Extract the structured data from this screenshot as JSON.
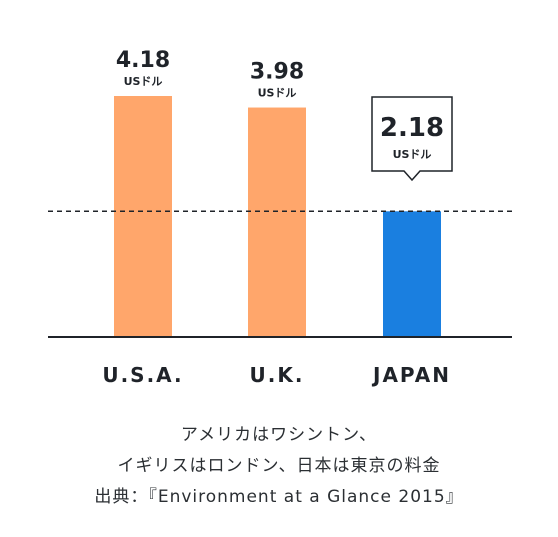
{
  "chart_data": {
    "type": "bar",
    "categories": [
      "U.S.A.",
      "U.K.",
      "JAPAN"
    ],
    "values": [
      4.18,
      3.98,
      2.18
    ],
    "value_labels": [
      "4.18",
      "3.98",
      "2.18"
    ],
    "unit": "USドル",
    "reference_line_value": 2.18,
    "ylim": [
      0,
      4.5
    ],
    "grid": false,
    "colors": {
      "default_bar": "#FFA66B",
      "highlight_bar": "#1A7FE0",
      "text": "#1F2329",
      "axis": "#1F2329"
    },
    "highlight_index": 2
  },
  "caption": {
    "line1": "アメリカはワシントン、",
    "line2": "イギリスはロンドン、日本は東京の料金",
    "line3": "出典：『Environment at a Glance 2015』"
  }
}
